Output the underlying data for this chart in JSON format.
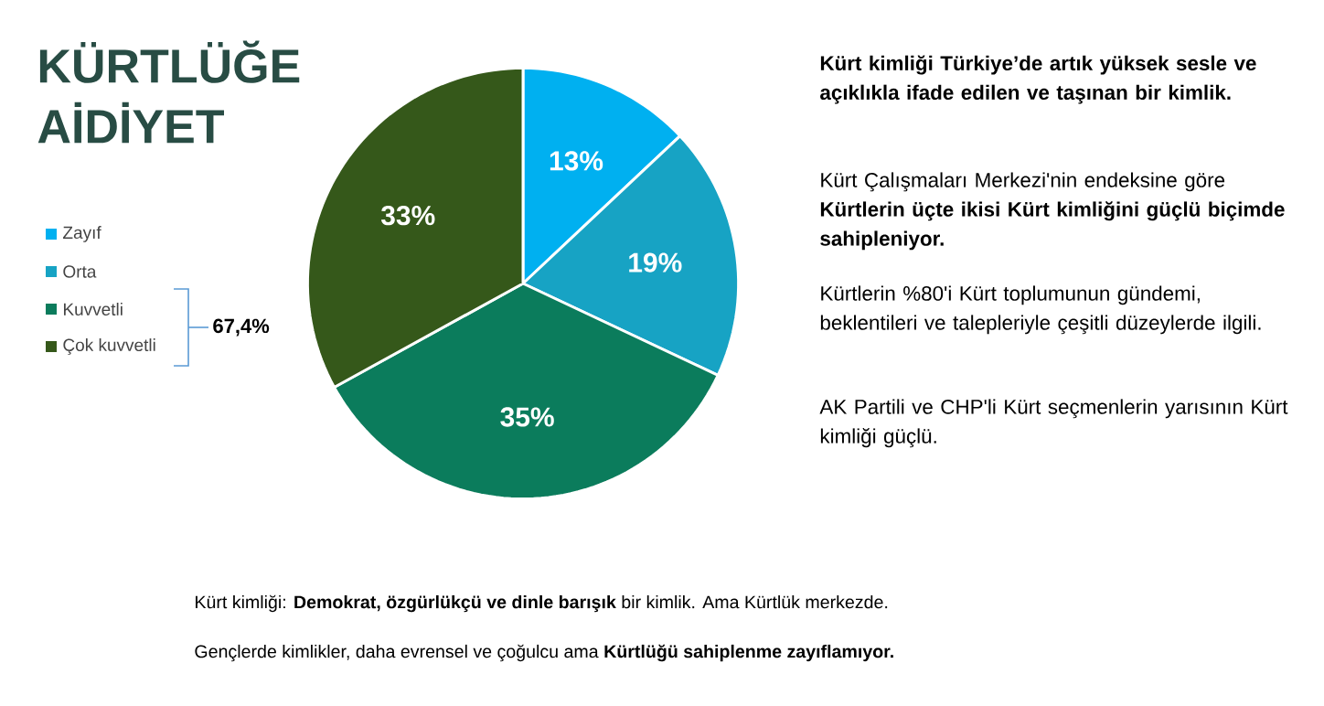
{
  "chart_data": {
    "type": "pie",
    "title": "KÜRTLÜĞE AİDİYET",
    "categories": [
      "Zayıf",
      "Orta",
      "Kuvvetli",
      "Çok kuvvetli"
    ],
    "values": [
      13,
      19,
      35,
      33
    ],
    "colors": [
      "#00b0f0",
      "#17a3c4",
      "#0b7c5c",
      "#35581a"
    ],
    "value_labels": [
      "13%",
      "19%",
      "35%",
      "33%"
    ],
    "legend": "left",
    "annotations": [
      "67,4%",
      "Kürt kimliği Türkiye’de artık yüksek sesle ve açıklıkla ifade edilen ve taşınan bir kimlik.",
      "Kürt Çalışmaları Merkezi'nin endeksine göre **Kürtlerin üçte ikisi Kürt kimliğini güçlü biçimde sahipleniyor.**",
      "Kürtlerin %80'i Kürt toplumunun gündemi, beklentileri ve talepleriyle çeşitli düzeylerde ilgili.",
      "AK Partili ve CHP'li Kürt seçmenlerin yarısının Kürt kimliği güçlü.",
      "Kürt kimliği: **Demokrat, özgürlükçü ve dinle barışık** bir kimlik. Ama Kürtlük merkezde.",
      "Gençlerde kimlikler, daha evrensel ve çoğulcu ama **Kürtlüğü sahiplenme zayıflamıyor.**"
    ]
  }
}
